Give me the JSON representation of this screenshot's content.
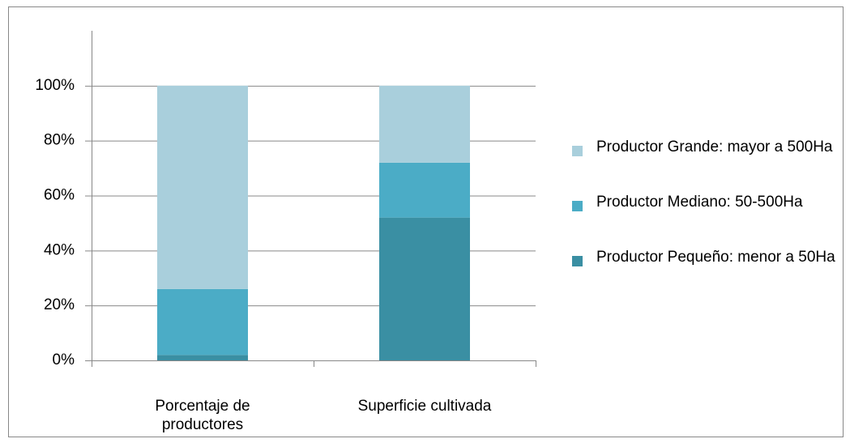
{
  "chart_data": {
    "type": "stacked_bar",
    "categories": [
      "Porcentaje de productores",
      "Superficie cultivada"
    ],
    "series": [
      {
        "name": "Productor Pequeño: menor a 50Ha",
        "color": "#3a8fa3",
        "values": [
          2,
          52
        ]
      },
      {
        "name": "Productor Mediano: 50-500Ha",
        "color": "#4bacc6",
        "values": [
          24,
          20
        ]
      },
      {
        "name": "Productor Grande: mayor a 500Ha",
        "color": "#a9cfdc",
        "values": [
          74,
          28
        ]
      }
    ],
    "ylim": [
      0,
      120
    ],
    "yticks": [
      {
        "value": 0,
        "label": "0%"
      },
      {
        "value": 20,
        "label": "20%"
      },
      {
        "value": 40,
        "label": "40%"
      },
      {
        "value": 60,
        "label": "60%"
      },
      {
        "value": 80,
        "label": "80%"
      },
      {
        "value": 100,
        "label": "100%"
      }
    ],
    "grid": true,
    "legend": "right"
  }
}
